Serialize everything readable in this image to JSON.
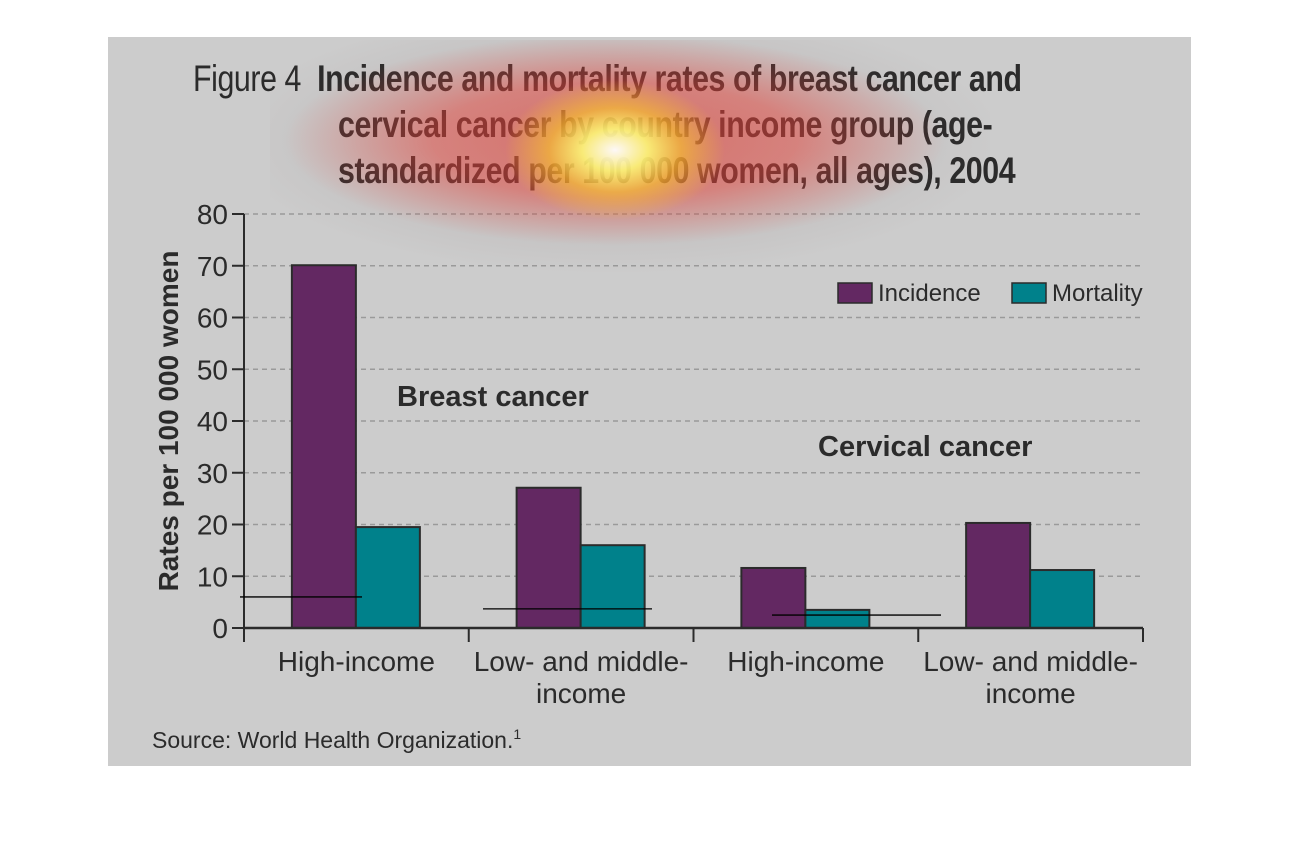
{
  "figure": {
    "label": "Figure 4",
    "title_lines": [
      "Incidence and mortality rates of breast cancer and",
      "cervical cancer by country income group (age-",
      "standardized per 100 000 women, all ages), 2004"
    ],
    "source": "Source: World Health Organization.",
    "source_superscript": "1"
  },
  "colors": {
    "incidence": "#632862",
    "mortality": "#00818b",
    "background": "#cccccc",
    "text": "#2b2b2b"
  },
  "chart_data": {
    "type": "bar",
    "title": "Incidence and mortality rates of breast cancer and cervical cancer by country income group (age-standardized per 100 000 women, all ages), 2004",
    "xlabel": "",
    "ylabel": "Rates per 100 000 women",
    "ylim": [
      0,
      80
    ],
    "yticks": [
      0,
      10,
      20,
      30,
      40,
      50,
      60,
      70,
      80
    ],
    "grid": true,
    "legend_position": "top-right",
    "groups": [
      {
        "name": "Breast cancer",
        "categories": [
          "High-income",
          "Low- and middle-income"
        ]
      },
      {
        "name": "Cervical cancer",
        "categories": [
          "High-income",
          "Low- and middle-income"
        ]
      }
    ],
    "categories": [
      [
        "High-income"
      ],
      [
        "Low- and middle-",
        "income"
      ],
      [
        "High-income"
      ],
      [
        "Low- and middle-",
        "income"
      ]
    ],
    "series": [
      {
        "name": "Incidence",
        "values": [
          70.1,
          27.1,
          11.6,
          20.3
        ]
      },
      {
        "name": "Mortality",
        "values": [
          19.5,
          16.0,
          3.5,
          11.2
        ]
      }
    ],
    "annotations": [
      "Breast cancer",
      "Cervical cancer"
    ],
    "marker_lines": [
      6,
      3.7,
      2.5
    ]
  }
}
